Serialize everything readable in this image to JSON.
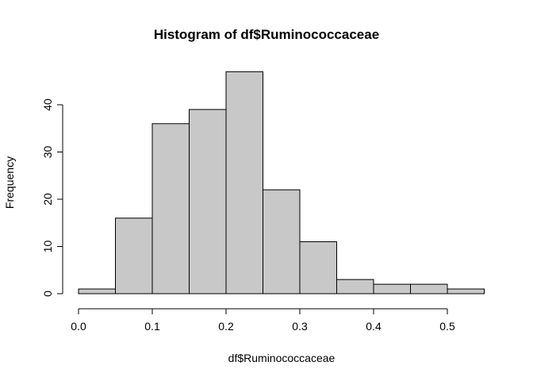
{
  "chart_data": {
    "type": "bar",
    "title": "Histogram of df$Ruminococcaceae",
    "xlabel": "df$Ruminococcaceae",
    "ylabel": "Frequency",
    "bins": [
      {
        "start": 0.0,
        "end": 0.05,
        "count": 1
      },
      {
        "start": 0.05,
        "end": 0.1,
        "count": 16
      },
      {
        "start": 0.1,
        "end": 0.15,
        "count": 36
      },
      {
        "start": 0.15,
        "end": 0.2,
        "count": 39
      },
      {
        "start": 0.2,
        "end": 0.25,
        "count": 47
      },
      {
        "start": 0.25,
        "end": 0.3,
        "count": 22
      },
      {
        "start": 0.3,
        "end": 0.35,
        "count": 11
      },
      {
        "start": 0.35,
        "end": 0.4,
        "count": 3
      },
      {
        "start": 0.4,
        "end": 0.45,
        "count": 2
      },
      {
        "start": 0.45,
        "end": 0.5,
        "count": 2
      },
      {
        "start": 0.5,
        "end": 0.55,
        "count": 1
      }
    ],
    "xlim": [
      0.0,
      0.55
    ],
    "ylim": [
      0,
      47
    ],
    "x_ticks": [
      {
        "value": 0.0,
        "label": "0.0"
      },
      {
        "value": 0.1,
        "label": "0.1"
      },
      {
        "value": 0.2,
        "label": "0.2"
      },
      {
        "value": 0.3,
        "label": "0.3"
      },
      {
        "value": 0.4,
        "label": "0.4"
      },
      {
        "value": 0.5,
        "label": "0.5"
      }
    ],
    "y_ticks": [
      {
        "value": 0,
        "label": "0"
      },
      {
        "value": 10,
        "label": "10"
      },
      {
        "value": 20,
        "label": "20"
      },
      {
        "value": 30,
        "label": "30"
      },
      {
        "value": 40,
        "label": "40"
      }
    ],
    "bar_fill": "#c8c8c8",
    "bar_stroke": "#000000",
    "grid": false,
    "legend": "none"
  }
}
